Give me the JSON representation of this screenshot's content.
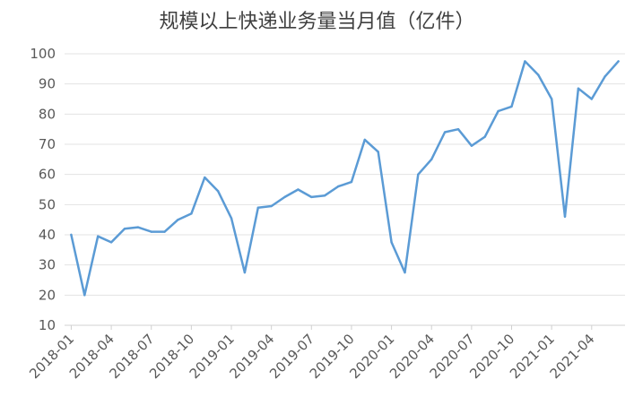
{
  "chart_data": {
    "type": "line",
    "title": "规模以上快递业务量当月值（亿件）",
    "xlabel": "",
    "ylabel": "",
    "ylim": [
      10,
      100
    ],
    "yticks": [
      10,
      20,
      30,
      40,
      50,
      60,
      70,
      80,
      90,
      100
    ],
    "grid": true,
    "legend": "none",
    "line_color": "#5B9BD5",
    "x": [
      "2018-01",
      "2018-02",
      "2018-03",
      "2018-04",
      "2018-05",
      "2018-06",
      "2018-07",
      "2018-08",
      "2018-09",
      "2018-10",
      "2018-11",
      "2018-12",
      "2019-01",
      "2019-02",
      "2019-03",
      "2019-04",
      "2019-05",
      "2019-06",
      "2019-07",
      "2019-08",
      "2019-09",
      "2019-10",
      "2019-11",
      "2019-12",
      "2020-01",
      "2020-02",
      "2020-03",
      "2020-04",
      "2020-05",
      "2020-06",
      "2020-07",
      "2020-08",
      "2020-09",
      "2020-10",
      "2020-11",
      "2020-12",
      "2021-01",
      "2021-02",
      "2021-03",
      "2021-04",
      "2021-05",
      "2021-06"
    ],
    "x_tick_labels": [
      "2018-01",
      "2018-04",
      "2018-07",
      "2018-10",
      "2019-01",
      "2019-04",
      "2019-07",
      "2019-10",
      "2020-01",
      "2020-04",
      "2020-07",
      "2020-10",
      "2021-01",
      "2021-04"
    ],
    "series": [
      {
        "values": [
          40,
          20,
          39.5,
          37.5,
          42,
          42.5,
          41,
          41,
          45,
          47,
          59,
          54.5,
          45.5,
          27.5,
          49,
          49.5,
          52.5,
          55,
          52.5,
          53,
          56,
          57.5,
          71.5,
          67.5,
          37.5,
          27.5,
          60,
          65,
          74,
          75,
          69.5,
          72.5,
          81,
          82.5,
          97.5,
          93,
          85,
          46,
          88.5,
          85,
          92.5,
          97.5
        ]
      }
    ]
  }
}
